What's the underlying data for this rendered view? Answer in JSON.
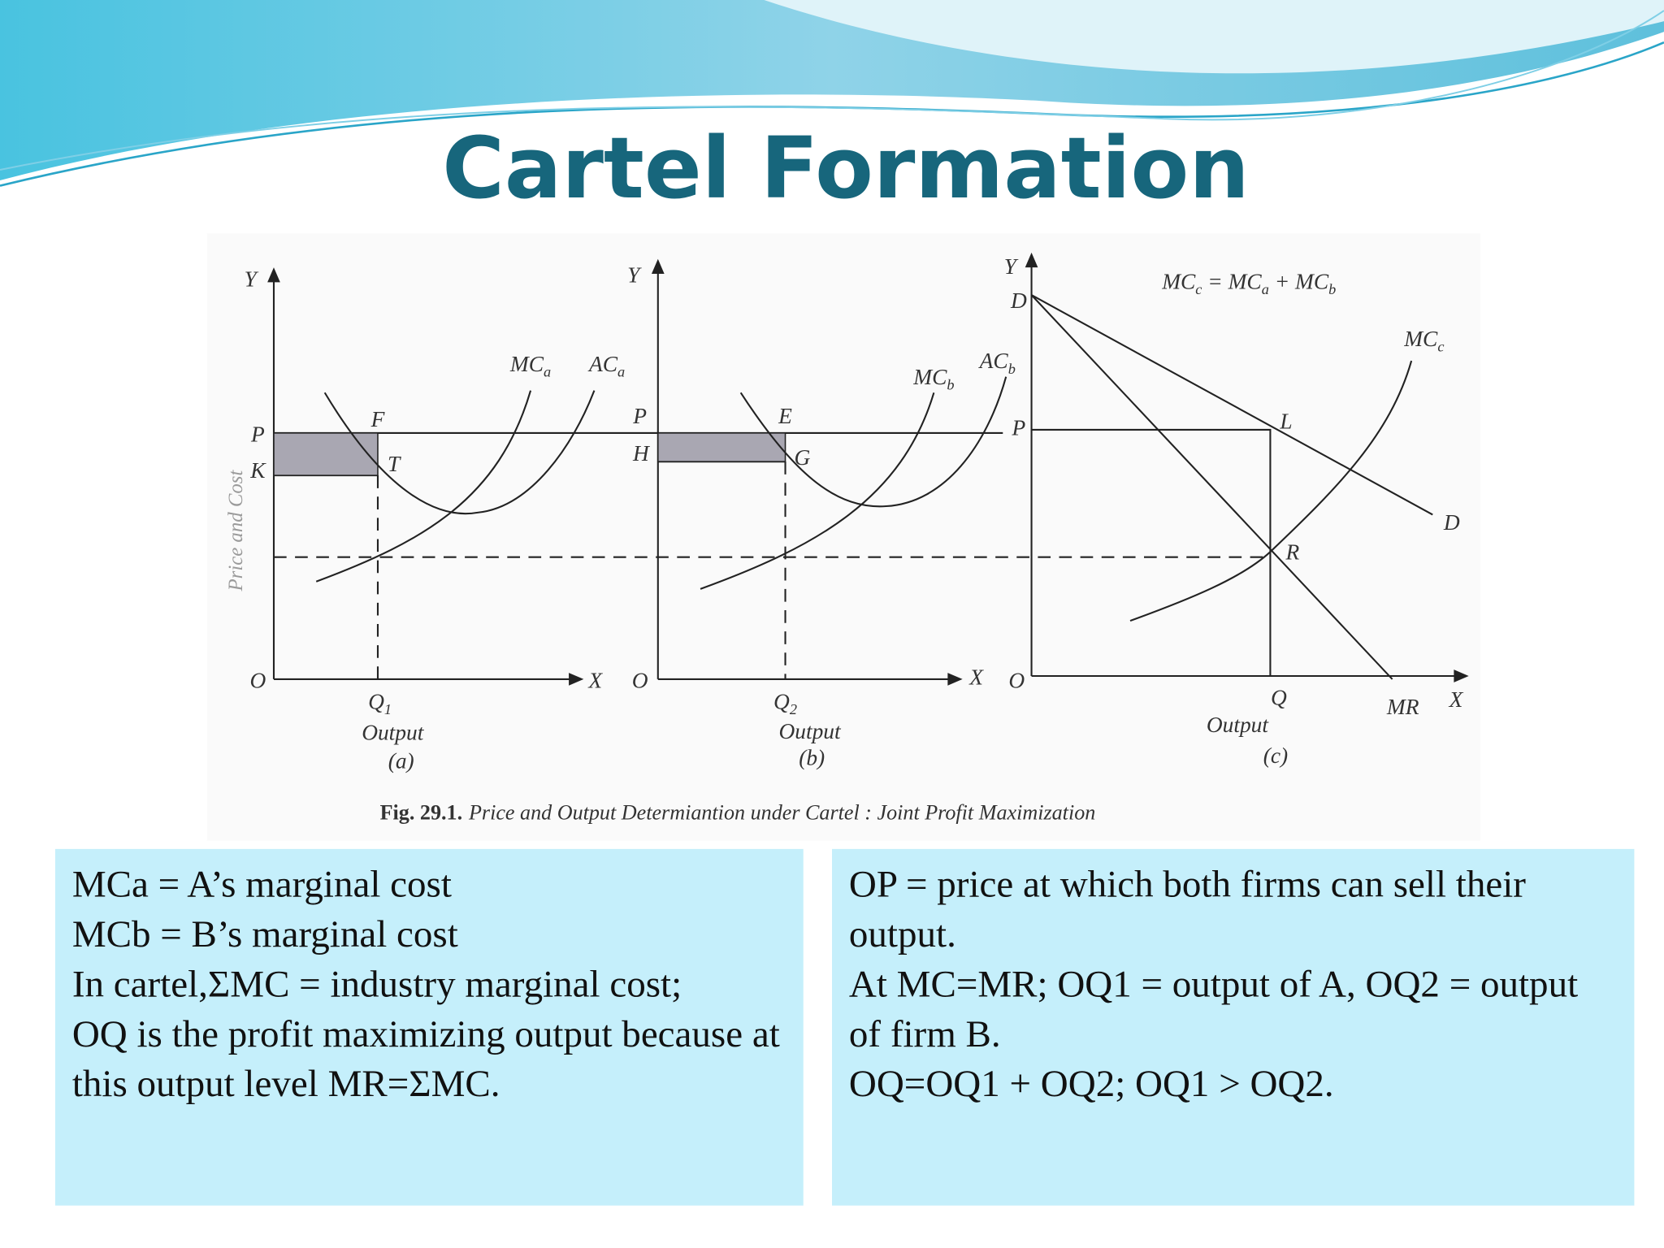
{
  "title": "Cartel Formation",
  "figure": {
    "y_axis_title": "Price and Cost",
    "panels": [
      {
        "labels": [
          {
            "text": "Y"
          },
          {
            "text": "O"
          },
          {
            "text": "X"
          },
          {
            "text": "P"
          },
          {
            "text": "K"
          },
          {
            "text": "F"
          },
          {
            "text": "T"
          },
          {
            "text": "MC",
            "sub": "a"
          },
          {
            "text": "AC",
            "sub": "a"
          },
          {
            "text": "Q",
            "sub": "1"
          },
          {
            "text": "Output"
          },
          {
            "text": "(a)"
          }
        ]
      },
      {
        "labels": [
          {
            "text": "Y"
          },
          {
            "text": "O"
          },
          {
            "text": "X"
          },
          {
            "text": "P"
          },
          {
            "text": "H"
          },
          {
            "text": "E"
          },
          {
            "text": "G"
          },
          {
            "text": "MC",
            "sub": "b"
          },
          {
            "text": "AC",
            "sub": "b"
          },
          {
            "text": "Q",
            "sub": "2"
          },
          {
            "text": "Output"
          },
          {
            "text": "(b)"
          }
        ]
      },
      {
        "labels": [
          {
            "text": "Y"
          },
          {
            "text": "O"
          },
          {
            "text": "X"
          },
          {
            "text": "D"
          },
          {
            "text": "P"
          },
          {
            "text": "L"
          },
          {
            "text": "R"
          },
          {
            "text": "D"
          },
          {
            "text": "MR"
          },
          {
            "text": "MC",
            "sub": "c"
          },
          {
            "text": "Q"
          },
          {
            "text": "Output"
          },
          {
            "text": "(c)"
          }
        ],
        "equation": [
          {
            "text": "MC",
            "sub": "c"
          },
          {
            "text": " = MC",
            "sub": "a"
          },
          {
            "text": " + MC",
            "sub": "b"
          }
        ]
      }
    ],
    "caption": {
      "number": "Fig. 29.1.",
      "text": "Price and Output Determiantion under Cartel :  Joint Profit Maximization"
    }
  },
  "notes_left": [
    "MCa = A’s marginal cost",
    "MCb = B’s marginal cost",
    "In cartel,ΣMC = industry marginal cost;",
    "OQ is the profit maximizing output because at this output level MR=ΣMC."
  ],
  "notes_right": [
    "OP = price at which both firms can sell their output.",
    "At MC=MR; OQ1 = output of A, OQ2 = output of firm B.",
    "OQ=OQ1 + OQ2; OQ1 > OQ2."
  ]
}
